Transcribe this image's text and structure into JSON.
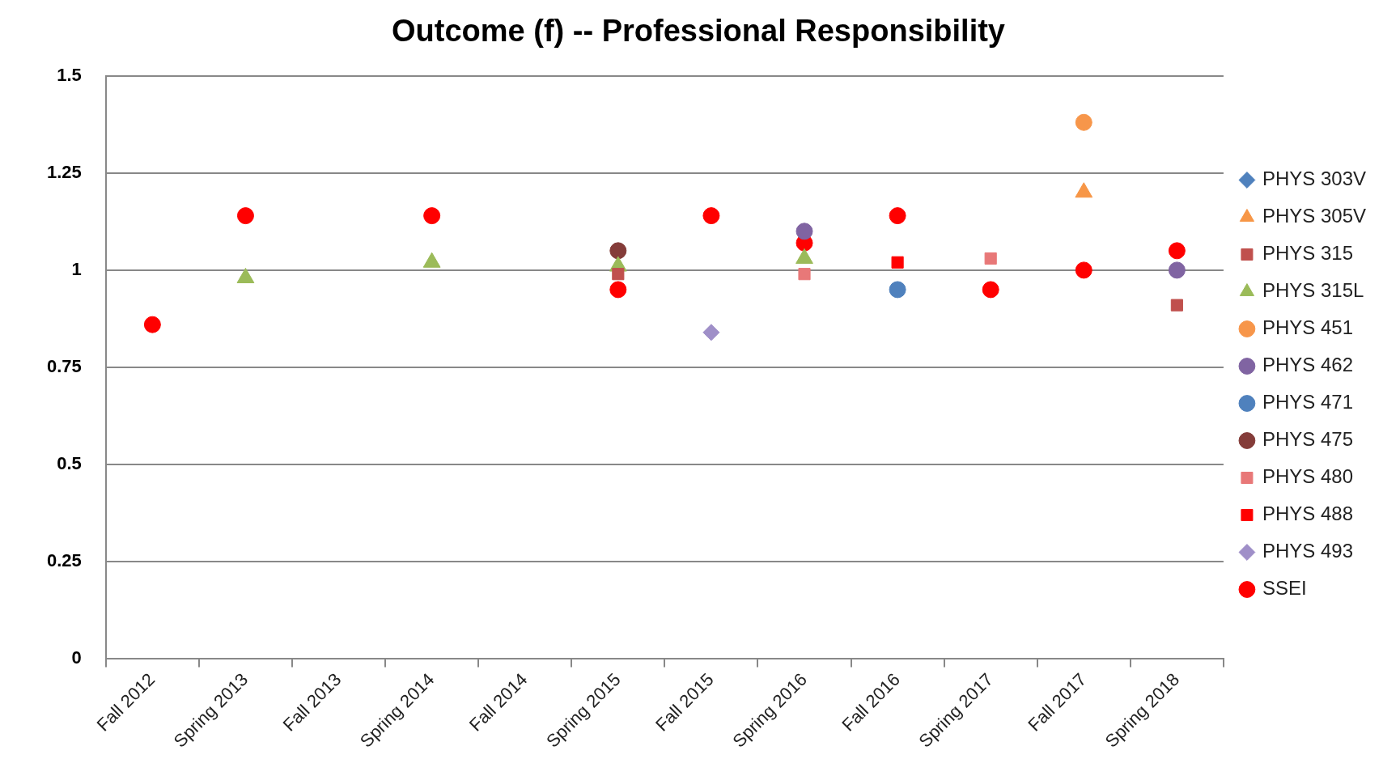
{
  "chart_data": {
    "type": "scatter",
    "title": "Outcome (f) -- Professional Responsibility",
    "categories": [
      "Fall 2012",
      "Spring 2013",
      "Fall 2013",
      "Spring 2014",
      "Fall 2014",
      "Spring 2015",
      "Fall 2015",
      "Spring 2016",
      "Fall 2016",
      "Spring 2017",
      "Fall 2017",
      "Spring 2018"
    ],
    "ylim": [
      0,
      1.5
    ],
    "yticks": [
      0,
      0.25,
      0.5,
      0.75,
      1,
      1.25,
      1.5
    ],
    "grid": "y",
    "legend": "right",
    "series": [
      {
        "name": "PHYS 303V",
        "color": "#4f81bd",
        "marker": "diamond",
        "values": [
          null,
          null,
          null,
          null,
          null,
          null,
          null,
          null,
          null,
          null,
          null,
          null
        ]
      },
      {
        "name": "PHYS 305V",
        "color": "#f79646",
        "marker": "triangle",
        "values": [
          null,
          null,
          null,
          null,
          null,
          null,
          null,
          null,
          null,
          null,
          1.2,
          null
        ]
      },
      {
        "name": "PHYS 315",
        "color": "#c0504d",
        "marker": "square",
        "values": [
          null,
          null,
          null,
          null,
          null,
          0.99,
          null,
          null,
          null,
          null,
          null,
          0.91
        ]
      },
      {
        "name": "PHYS 315L",
        "color": "#9bbb59",
        "marker": "triangle",
        "values": [
          null,
          0.98,
          null,
          1.02,
          null,
          1.01,
          null,
          1.03,
          null,
          null,
          null,
          null
        ]
      },
      {
        "name": "PHYS 451",
        "color": "#f7964a",
        "marker": "circle",
        "values": [
          null,
          null,
          null,
          null,
          null,
          null,
          null,
          null,
          null,
          null,
          1.38,
          null
        ]
      },
      {
        "name": "PHYS 462",
        "color": "#8064a2",
        "marker": "circle",
        "values": [
          null,
          null,
          null,
          null,
          null,
          null,
          null,
          1.1,
          null,
          null,
          null,
          1.0
        ]
      },
      {
        "name": "PHYS 471",
        "color": "#4f81bd",
        "marker": "circle",
        "values": [
          null,
          null,
          null,
          null,
          null,
          null,
          null,
          null,
          0.95,
          null,
          null,
          null
        ]
      },
      {
        "name": "PHYS 475",
        "color": "#843c39",
        "marker": "circle",
        "values": [
          null,
          null,
          null,
          null,
          null,
          1.05,
          null,
          null,
          null,
          null,
          null,
          null
        ]
      },
      {
        "name": "PHYS 480",
        "color": "#e87878",
        "marker": "square",
        "values": [
          null,
          null,
          null,
          null,
          null,
          null,
          null,
          0.99,
          null,
          1.03,
          null,
          null
        ]
      },
      {
        "name": "PHYS 488",
        "color": "#ff0000",
        "marker": "square",
        "values": [
          null,
          null,
          null,
          null,
          null,
          null,
          null,
          null,
          1.02,
          null,
          null,
          null
        ]
      },
      {
        "name": "PHYS 493",
        "color": "#9f8fc8",
        "marker": "diamond",
        "values": [
          null,
          null,
          null,
          null,
          null,
          null,
          0.84,
          null,
          null,
          null,
          null,
          null
        ]
      },
      {
        "name": "SSEI",
        "color": "#ff0000",
        "marker": "circle",
        "values": [
          0.86,
          1.14,
          null,
          1.14,
          null,
          0.95,
          1.14,
          1.07,
          1.14,
          0.95,
          1.0,
          1.05
        ]
      }
    ]
  }
}
